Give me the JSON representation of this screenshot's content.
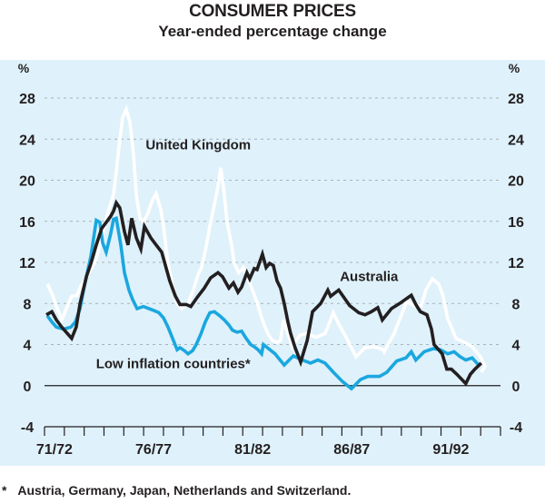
{
  "chart_data": {
    "type": "line",
    "title": "CONSUMER PRICES",
    "subtitle": "Year-ended percentage change",
    "xlabel": "",
    "ylabel": "%",
    "ylabel_right": "%",
    "ylim": [
      -4,
      28
    ],
    "yticks": [
      -4,
      0,
      4,
      8,
      12,
      16,
      20,
      24,
      28
    ],
    "ytick_labels": [
      "-4",
      "0",
      "4",
      "8",
      "12",
      "16",
      "20",
      "24",
      "28"
    ],
    "grid": "horizontal dotted",
    "x_unit": "years since start of 1971/72 financial year",
    "xlim": [
      0,
      23
    ],
    "x_minor_ticks_every": 1,
    "xtick_labels": [
      {
        "label": "71/72",
        "at": 0.5
      },
      {
        "label": "76/77",
        "at": 5.5
      },
      {
        "label": "81/82",
        "at": 10.5
      },
      {
        "label": "86/87",
        "at": 15.5
      },
      {
        "label": "91/92",
        "at": 20.5
      }
    ],
    "series": [
      {
        "name": "Australia",
        "color": "#231f20",
        "label_pos": [
          14.9,
          10.2
        ],
        "points": [
          [
            0.09,
            6.9
          ],
          [
            0.37,
            7.2
          ],
          [
            0.6,
            6.4
          ],
          [
            0.87,
            5.7
          ],
          [
            1.37,
            4.6
          ],
          [
            1.6,
            5.7
          ],
          [
            1.79,
            8.0
          ],
          [
            2.11,
            10.6
          ],
          [
            2.34,
            11.9
          ],
          [
            2.61,
            13.7
          ],
          [
            2.88,
            15.3
          ],
          [
            3.11,
            15.9
          ],
          [
            3.34,
            16.5
          ],
          [
            3.48,
            17.0
          ],
          [
            3.62,
            17.8
          ],
          [
            3.8,
            17.3
          ],
          [
            4.03,
            15.0
          ],
          [
            4.21,
            13.7
          ],
          [
            4.4,
            16.3
          ],
          [
            4.63,
            14.4
          ],
          [
            4.86,
            13.3
          ],
          [
            5.04,
            15.5
          ],
          [
            5.36,
            14.4
          ],
          [
            5.63,
            13.7
          ],
          [
            5.91,
            13.0
          ],
          [
            6.32,
            10.2
          ],
          [
            6.6,
            8.7
          ],
          [
            6.83,
            7.9
          ],
          [
            7.15,
            7.9
          ],
          [
            7.38,
            7.7
          ],
          [
            7.7,
            8.6
          ],
          [
            8.06,
            9.5
          ],
          [
            8.38,
            10.5
          ],
          [
            8.75,
            11.0
          ],
          [
            8.98,
            10.6
          ],
          [
            9.3,
            9.5
          ],
          [
            9.53,
            10.0
          ],
          [
            9.76,
            9.1
          ],
          [
            9.94,
            9.6
          ],
          [
            10.21,
            11.0
          ],
          [
            10.35,
            10.4
          ],
          [
            10.58,
            11.4
          ],
          [
            10.72,
            11.3
          ],
          [
            10.99,
            12.8
          ],
          [
            11.18,
            11.5
          ],
          [
            11.36,
            11.9
          ],
          [
            11.54,
            11.7
          ],
          [
            11.73,
            10.2
          ],
          [
            11.91,
            9.5
          ],
          [
            12.09,
            8.0
          ],
          [
            12.28,
            6.2
          ],
          [
            12.41,
            5.1
          ],
          [
            12.64,
            3.7
          ],
          [
            12.92,
            2.3
          ],
          [
            13.25,
            4.4
          ],
          [
            13.52,
            7.2
          ],
          [
            13.93,
            8.0
          ],
          [
            14.29,
            9.3
          ],
          [
            14.43,
            8.7
          ],
          [
            14.84,
            9.3
          ],
          [
            15.39,
            7.8
          ],
          [
            15.85,
            7.1
          ],
          [
            16.17,
            6.9
          ],
          [
            16.49,
            7.2
          ],
          [
            16.81,
            7.6
          ],
          [
            17.04,
            6.4
          ],
          [
            17.5,
            7.5
          ],
          [
            17.91,
            8.0
          ],
          [
            18.5,
            8.8
          ],
          [
            18.73,
            7.9
          ],
          [
            18.96,
            7.2
          ],
          [
            19.29,
            6.9
          ],
          [
            19.52,
            5.5
          ],
          [
            19.65,
            4.0
          ],
          [
            19.88,
            3.5
          ],
          [
            20.06,
            3.1
          ],
          [
            20.29,
            1.6
          ],
          [
            20.52,
            1.6
          ],
          [
            20.8,
            1.1
          ],
          [
            21.25,
            0.2
          ],
          [
            21.48,
            1.1
          ],
          [
            21.71,
            1.6
          ],
          [
            22.03,
            2.2
          ]
        ]
      },
      {
        "name": "United Kingdom",
        "color": "#ffffff",
        "label_pos": [
          5.1,
          23.0
        ],
        "points": [
          [
            0.14,
            9.9
          ],
          [
            0.41,
            8.8
          ],
          [
            0.64,
            7.5
          ],
          [
            0.87,
            6.4
          ],
          [
            1.1,
            7.5
          ],
          [
            1.37,
            8.7
          ],
          [
            1.65,
            8.8
          ],
          [
            1.83,
            9.7
          ],
          [
            2.02,
            10.2
          ],
          [
            2.29,
            11.2
          ],
          [
            2.57,
            12.1
          ],
          [
            2.79,
            13.7
          ],
          [
            3.02,
            15.5
          ],
          [
            3.25,
            17.2
          ],
          [
            3.48,
            18.6
          ],
          [
            3.62,
            20.8
          ],
          [
            3.76,
            23.4
          ],
          [
            3.94,
            26.1
          ],
          [
            4.12,
            26.9
          ],
          [
            4.31,
            25.6
          ],
          [
            4.49,
            22.5
          ],
          [
            4.63,
            18.6
          ],
          [
            4.81,
            16.3
          ],
          [
            4.99,
            15.9
          ],
          [
            5.22,
            16.8
          ],
          [
            5.45,
            18.1
          ],
          [
            5.63,
            18.7
          ],
          [
            5.86,
            17.2
          ],
          [
            6.0,
            15.5
          ],
          [
            6.23,
            11.9
          ],
          [
            6.46,
            9.7
          ],
          [
            6.69,
            8.0
          ],
          [
            6.92,
            7.5
          ],
          [
            7.24,
            8.0
          ],
          [
            7.51,
            9.3
          ],
          [
            7.74,
            10.8
          ],
          [
            7.92,
            11.5
          ],
          [
            8.15,
            13.5
          ],
          [
            8.34,
            15.5
          ],
          [
            8.52,
            17.2
          ],
          [
            8.75,
            19.4
          ],
          [
            8.89,
            21.2
          ],
          [
            9.02,
            19.4
          ],
          [
            9.21,
            15.9
          ],
          [
            9.44,
            13.7
          ],
          [
            9.57,
            11.9
          ],
          [
            9.8,
            11.0
          ],
          [
            10.03,
            11.5
          ],
          [
            10.22,
            10.6
          ],
          [
            10.49,
            9.3
          ],
          [
            10.77,
            7.8
          ],
          [
            10.95,
            6.6
          ],
          [
            11.13,
            5.7
          ],
          [
            11.31,
            4.9
          ],
          [
            11.5,
            4.4
          ],
          [
            11.73,
            4.2
          ],
          [
            11.91,
            4.4
          ],
          [
            12.05,
            6.4
          ],
          [
            12.5,
            3.8
          ],
          [
            12.87,
            4.9
          ],
          [
            13.23,
            5.1
          ],
          [
            13.7,
            4.7
          ],
          [
            14.16,
            5.1
          ],
          [
            14.57,
            7.1
          ],
          [
            14.84,
            6.0
          ],
          [
            15.3,
            4.4
          ],
          [
            15.71,
            2.8
          ],
          [
            16.17,
            3.7
          ],
          [
            16.63,
            3.8
          ],
          [
            17.09,
            3.5
          ],
          [
            17.13,
            3.3
          ],
          [
            17.13,
            3.3
          ],
          [
            17.64,
            5.1
          ],
          [
            18.27,
            8.2
          ],
          [
            18.73,
            7.7
          ],
          [
            19.0,
            7.8
          ],
          [
            19.24,
            9.3
          ],
          [
            19.56,
            10.4
          ],
          [
            19.88,
            9.9
          ],
          [
            20.11,
            8.7
          ],
          [
            20.34,
            6.5
          ],
          [
            20.52,
            5.7
          ],
          [
            20.75,
            4.6
          ],
          [
            21.2,
            4.2
          ],
          [
            21.57,
            3.8
          ],
          [
            21.99,
            2.8
          ],
          [
            22.22,
            1.9
          ],
          [
            22.03,
            1.3
          ]
        ]
      },
      {
        "name": "Low inflation countries*",
        "color": "#1aa7df",
        "label_pos": [
          2.6,
          1.7
        ],
        "points": [
          [
            0.14,
            6.8
          ],
          [
            0.37,
            6.2
          ],
          [
            0.6,
            5.7
          ],
          [
            0.96,
            5.5
          ],
          [
            1.33,
            5.7
          ],
          [
            1.56,
            6.2
          ],
          [
            1.79,
            7.5
          ],
          [
            1.97,
            9.3
          ],
          [
            2.11,
            10.6
          ],
          [
            2.34,
            12.6
          ],
          [
            2.61,
            16.1
          ],
          [
            2.79,
            15.9
          ],
          [
            2.93,
            13.9
          ],
          [
            3.11,
            13.0
          ],
          [
            3.34,
            14.8
          ],
          [
            3.48,
            16.2
          ],
          [
            3.62,
            16.3
          ],
          [
            3.85,
            13.7
          ],
          [
            4.03,
            11.0
          ],
          [
            4.26,
            9.3
          ],
          [
            4.44,
            8.4
          ],
          [
            4.67,
            7.5
          ],
          [
            4.99,
            7.7
          ],
          [
            5.27,
            7.5
          ],
          [
            5.54,
            7.3
          ],
          [
            5.77,
            7.1
          ],
          [
            6.0,
            6.6
          ],
          [
            6.23,
            5.7
          ],
          [
            6.46,
            4.6
          ],
          [
            6.69,
            3.5
          ],
          [
            6.83,
            3.7
          ],
          [
            7.06,
            3.4
          ],
          [
            7.24,
            3.1
          ],
          [
            7.47,
            3.4
          ],
          [
            7.65,
            4.0
          ],
          [
            7.88,
            5.0
          ],
          [
            8.11,
            6.2
          ],
          [
            8.34,
            7.1
          ],
          [
            8.57,
            7.2
          ],
          [
            8.84,
            6.8
          ],
          [
            9.07,
            6.4
          ],
          [
            9.3,
            5.9
          ],
          [
            9.48,
            5.4
          ],
          [
            9.71,
            5.2
          ],
          [
            9.94,
            5.3
          ],
          [
            10.17,
            4.6
          ],
          [
            10.4,
            4.0
          ],
          [
            10.58,
            3.8
          ],
          [
            10.77,
            3.5
          ],
          [
            10.95,
            3.1
          ],
          [
            11.04,
            4.0
          ],
          [
            11.63,
            3.1
          ],
          [
            12.09,
            2.0
          ],
          [
            12.55,
            2.9
          ],
          [
            13.0,
            2.5
          ],
          [
            13.42,
            2.2
          ],
          [
            13.79,
            2.5
          ],
          [
            14.15,
            2.2
          ],
          [
            14.57,
            1.3
          ],
          [
            15.03,
            0.4
          ],
          [
            15.48,
            -0.3
          ],
          [
            15.94,
            0.6
          ],
          [
            16.31,
            0.9
          ],
          [
            16.9,
            0.9
          ],
          [
            17.27,
            1.3
          ],
          [
            17.77,
            2.4
          ],
          [
            18.23,
            2.7
          ],
          [
            18.5,
            3.3
          ],
          [
            18.73,
            2.5
          ],
          [
            19.15,
            3.3
          ],
          [
            19.29,
            3.4
          ],
          [
            19.61,
            3.6
          ],
          [
            19.97,
            3.5
          ],
          [
            20.34,
            3.1
          ],
          [
            20.66,
            3.3
          ],
          [
            20.98,
            2.8
          ],
          [
            21.25,
            2.5
          ],
          [
            21.57,
            2.7
          ],
          [
            21.9,
            2.0
          ]
        ]
      }
    ],
    "footnote": "Austria, Germany, Japan, Netherlands and Switzerland."
  },
  "footnote_marker": "*"
}
